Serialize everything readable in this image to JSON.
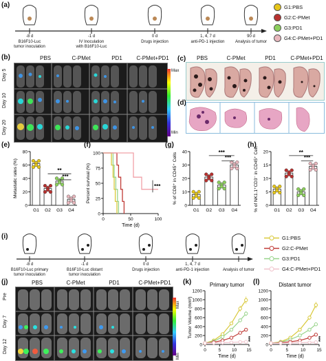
{
  "panels": {
    "a": "(a)",
    "b": "(b)",
    "c": "(c)",
    "d": "(d)",
    "e": "(e)",
    "f": "(f)",
    "g": "(g)",
    "h": "(h)",
    "i": "(i)",
    "j": "(j)",
    "k": "(k)",
    "l": "(l)"
  },
  "timeline_a": {
    "days": [
      "-8 d",
      "-1 d",
      "0 d",
      "1, 4, 7 d",
      "90 d"
    ],
    "events": [
      "B16F10-Luc\ntumor inoculation",
      "IV Inoculation\nwith B16F10-Luc",
      "Drugs injection",
      "anti-PD-1 injection",
      "Analysis of tumor"
    ]
  },
  "legend_a": [
    {
      "label": "G1:PBS",
      "color": "#e6c619"
    },
    {
      "label": "G2:C-PMet",
      "color": "#b8312f"
    },
    {
      "label": "G3:PD1",
      "color": "#8ccf5d"
    },
    {
      "label": "G4:C-PMet+PD1",
      "color": "#e8b7bd"
    }
  ],
  "groups": [
    "PBS",
    "C-PMet",
    "PD1",
    "C-PMet+PD1"
  ],
  "ivis_rows_b": [
    "Day 5",
    "Day 10",
    "Day 20"
  ],
  "ivis_rows_j": [
    "Pre",
    "Day 7",
    "Day 12"
  ],
  "colorbar": {
    "max": "Max",
    "min": "Min"
  },
  "chart_e": {
    "ylabel": "Metastatic rates (%)",
    "sig1": "**",
    "sig2": "***"
  },
  "chart_f": {
    "ylabel": "Percent survival (%)",
    "xlabel": "Time (d)",
    "sig": "***"
  },
  "chart_g": {
    "ylabel": "% of CD8⁺ in CD45⁺ Cells",
    "sig1": "***",
    "sig2": "***"
  },
  "chart_h": {
    "ylabel": "% of NK1.1⁺CD3⁻ in CD45⁺ Cells",
    "sig1": "**",
    "sig2": "***"
  },
  "timeline_i": {
    "days": [
      "-8 d",
      "-1 d",
      "0 d",
      "1, 4, 7 d",
      ""
    ],
    "events": [
      "B16F10-Luc primary\ntumor inoculation",
      "B16F10-Luc distant\ntumor inoculation",
      "Drugs injection",
      "anti-PD-1 injection",
      "Analysis of tumor"
    ]
  },
  "legend_i": [
    {
      "label": "G1:PBS",
      "color": "#d9c93a"
    },
    {
      "label": "G2:C-PMet",
      "color": "#c03a36"
    },
    {
      "label": "G3:PD1",
      "color": "#98d48a"
    },
    {
      "label": "G4:C-PMet+PD1",
      "color": "#f0c3cc"
    }
  ],
  "chart_data": [
    {
      "type": "bar",
      "panel": "e",
      "categories": [
        "G1",
        "G2",
        "G3",
        "G4"
      ],
      "values": [
        62,
        25,
        36,
        9
      ],
      "colors": [
        "#e6c619",
        "#b8312f",
        "#8ccf5d",
        "#e8b7bd"
      ],
      "ylabel": "Metastatic rates (%)",
      "ylim": [
        0,
        80
      ],
      "yticks": [
        0,
        20,
        40,
        60,
        80
      ]
    },
    {
      "type": "line",
      "panel": "f",
      "step": true,
      "ylabel": "Percent survival (%)",
      "xlabel": "Time (d)",
      "ylim": [
        0,
        100
      ],
      "xlim": [
        0,
        100
      ],
      "yticks": [
        0,
        25,
        50,
        75,
        100
      ],
      "xticks": [
        0,
        50,
        100
      ],
      "series": [
        {
          "color": "#d9c93a",
          "x": [
            0,
            15,
            18,
            20,
            22,
            25
          ],
          "y": [
            100,
            80,
            60,
            40,
            20,
            0
          ]
        },
        {
          "color": "#c03a36",
          "x": [
            0,
            25,
            28,
            32,
            35,
            38
          ],
          "y": [
            100,
            80,
            60,
            40,
            20,
            0
          ]
        },
        {
          "color": "#98d48a",
          "x": [
            0,
            18,
            20,
            23,
            26,
            28
          ],
          "y": [
            100,
            80,
            60,
            40,
            20,
            0
          ]
        },
        {
          "color": "#f0a0a8",
          "x": [
            0,
            55,
            70,
            100
          ],
          "y": [
            100,
            60,
            40,
            40
          ]
        }
      ]
    },
    {
      "type": "bar",
      "panel": "g",
      "categories": [
        "G1",
        "G2",
        "G3",
        "G4"
      ],
      "values": [
        8,
        21,
        15,
        30
      ],
      "colors": [
        "#e6c619",
        "#b8312f",
        "#8ccf5d",
        "#e8b7bd"
      ],
      "ylabel": "% of CD8⁺ in CD45⁺ Cells",
      "ylim": [
        0,
        40
      ],
      "yticks": [
        0,
        10,
        20,
        30,
        40
      ]
    },
    {
      "type": "bar",
      "panel": "h",
      "categories": [
        "G1",
        "G2",
        "G3",
        "G4"
      ],
      "values": [
        6,
        12,
        5,
        14.5
      ],
      "colors": [
        "#e6c619",
        "#b8312f",
        "#8ccf5d",
        "#e8b7bd"
      ],
      "ylabel": "% of NK1.1⁺CD3⁻ in CD45⁺ Cells",
      "ylim": [
        0,
        20
      ],
      "yticks": [
        0,
        5,
        10,
        15,
        20
      ]
    },
    {
      "type": "line",
      "panel": "k",
      "title": "Primary tumor",
      "ylabel": "Tumor Volume (mm³)",
      "xlabel": "Time (d)",
      "xlim": [
        0,
        15
      ],
      "ylim": [
        0,
        1200
      ],
      "xticks": [
        0,
        5,
        10,
        15
      ],
      "yticks": [
        0,
        200,
        400,
        600,
        800,
        1000,
        1200
      ],
      "x": [
        0,
        3,
        6,
        9,
        12,
        14
      ],
      "series": [
        {
          "color": "#d9c93a",
          "values": [
            30,
            90,
            230,
            470,
            800,
            990
          ]
        },
        {
          "color": "#98d48a",
          "values": [
            30,
            70,
            170,
            330,
            540,
            690
          ]
        },
        {
          "color": "#c03a36",
          "values": [
            30,
            50,
            90,
            150,
            260,
            330
          ]
        },
        {
          "color": "#f0c3cc",
          "values": [
            30,
            35,
            40,
            45,
            55,
            60
          ]
        }
      ],
      "sig": "***"
    },
    {
      "type": "line",
      "panel": "l",
      "title": "Distant tumor",
      "ylabel": "",
      "xlabel": "Time (d)",
      "xlim": [
        0,
        15
      ],
      "ylim": [
        0,
        1200
      ],
      "xticks": [
        0,
        5,
        10,
        15
      ],
      "yticks": [
        0,
        200,
        400,
        600,
        800,
        1000,
        1200
      ],
      "x": [
        0,
        3,
        6,
        9,
        12,
        14
      ],
      "series": [
        {
          "color": "#d9c93a",
          "values": [
            30,
            60,
            150,
            330,
            600,
            880
          ]
        },
        {
          "color": "#98d48a",
          "values": [
            30,
            50,
            110,
            200,
            330,
            450
          ]
        },
        {
          "color": "#c03a36",
          "values": [
            30,
            40,
            60,
            90,
            150,
            220
          ]
        },
        {
          "color": "#f0c3cc",
          "values": [
            30,
            32,
            35,
            40,
            45,
            50
          ]
        }
      ],
      "sig": "***"
    }
  ]
}
